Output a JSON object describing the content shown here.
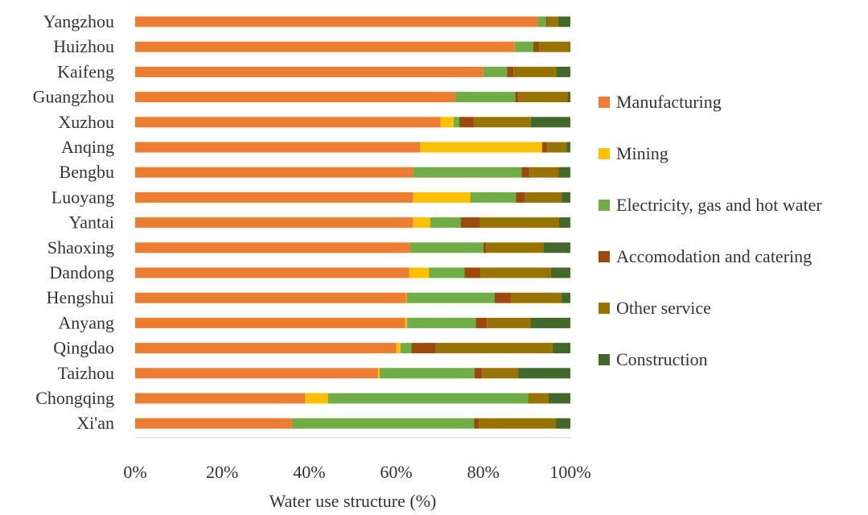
{
  "chart_data": {
    "type": "bar",
    "orientation": "horizontal",
    "stacked": "percent",
    "title": "",
    "xlabel": "Water use structure (%)",
    "ylabel": "",
    "xlim": [
      0,
      100
    ],
    "x_ticks": [
      "0%",
      "20%",
      "40%",
      "60%",
      "80%",
      "100%"
    ],
    "grid": false,
    "legend_position": "right",
    "categories": [
      "Yangzhou",
      "Huizhou",
      "Kaifeng",
      "Guangzhou",
      "Xuzhou",
      "Anqing",
      "Bengbu",
      "Luoyang",
      "Yantai",
      "Shaoxing",
      "Dandong",
      "Hengshui",
      "Anyang",
      "Qingdao",
      "Taizhou",
      "Chongqing",
      "Xi'an"
    ],
    "series": [
      {
        "name": "Manufacturing",
        "color": "#ED7D31",
        "values": [
          92.5,
          87.2,
          80.0,
          73.5,
          70.2,
          65.5,
          63.8,
          63.8,
          63.8,
          63.2,
          63.0,
          62.2,
          62.0,
          60.0,
          55.8,
          39.0,
          36.0
        ]
      },
      {
        "name": "Mining",
        "color": "#FFC000",
        "values": [
          0.0,
          0.0,
          0.0,
          0.0,
          3.0,
          28.0,
          0.0,
          13.2,
          4.0,
          0.0,
          4.5,
          0.2,
          0.5,
          1.0,
          0.4,
          5.3,
          0.0
        ]
      },
      {
        "name": "Electricity, gas and hot water",
        "color": "#70AD47",
        "values": [
          1.9,
          4.3,
          5.5,
          13.8,
          1.3,
          0.0,
          25.0,
          10.5,
          7.0,
          16.8,
          8.2,
          20.2,
          15.8,
          2.5,
          21.8,
          46.0,
          41.9
        ]
      },
      {
        "name": "Accomodation and catering",
        "color": "#9E480E",
        "values": [
          0.4,
          1.3,
          1.4,
          0.7,
          3.3,
          1.2,
          1.8,
          2.1,
          4.4,
          0.7,
          3.6,
          3.8,
          2.5,
          5.6,
          1.7,
          0.0,
          1.1
        ]
      },
      {
        "name": "Other service",
        "color": "#997300",
        "values": [
          2.4,
          7.0,
          9.8,
          11.3,
          13.1,
          4.4,
          6.7,
          8.4,
          18.2,
          13.2,
          16.2,
          11.6,
          10.0,
          26.8,
          8.3,
          4.7,
          17.6
        ]
      },
      {
        "name": "Construction",
        "color": "#43682B",
        "values": [
          2.8,
          0.2,
          3.3,
          0.7,
          9.1,
          0.9,
          2.7,
          2.0,
          2.6,
          6.1,
          4.5,
          2.0,
          9.2,
          4.1,
          12.0,
          5.0,
          3.4
        ]
      }
    ]
  }
}
